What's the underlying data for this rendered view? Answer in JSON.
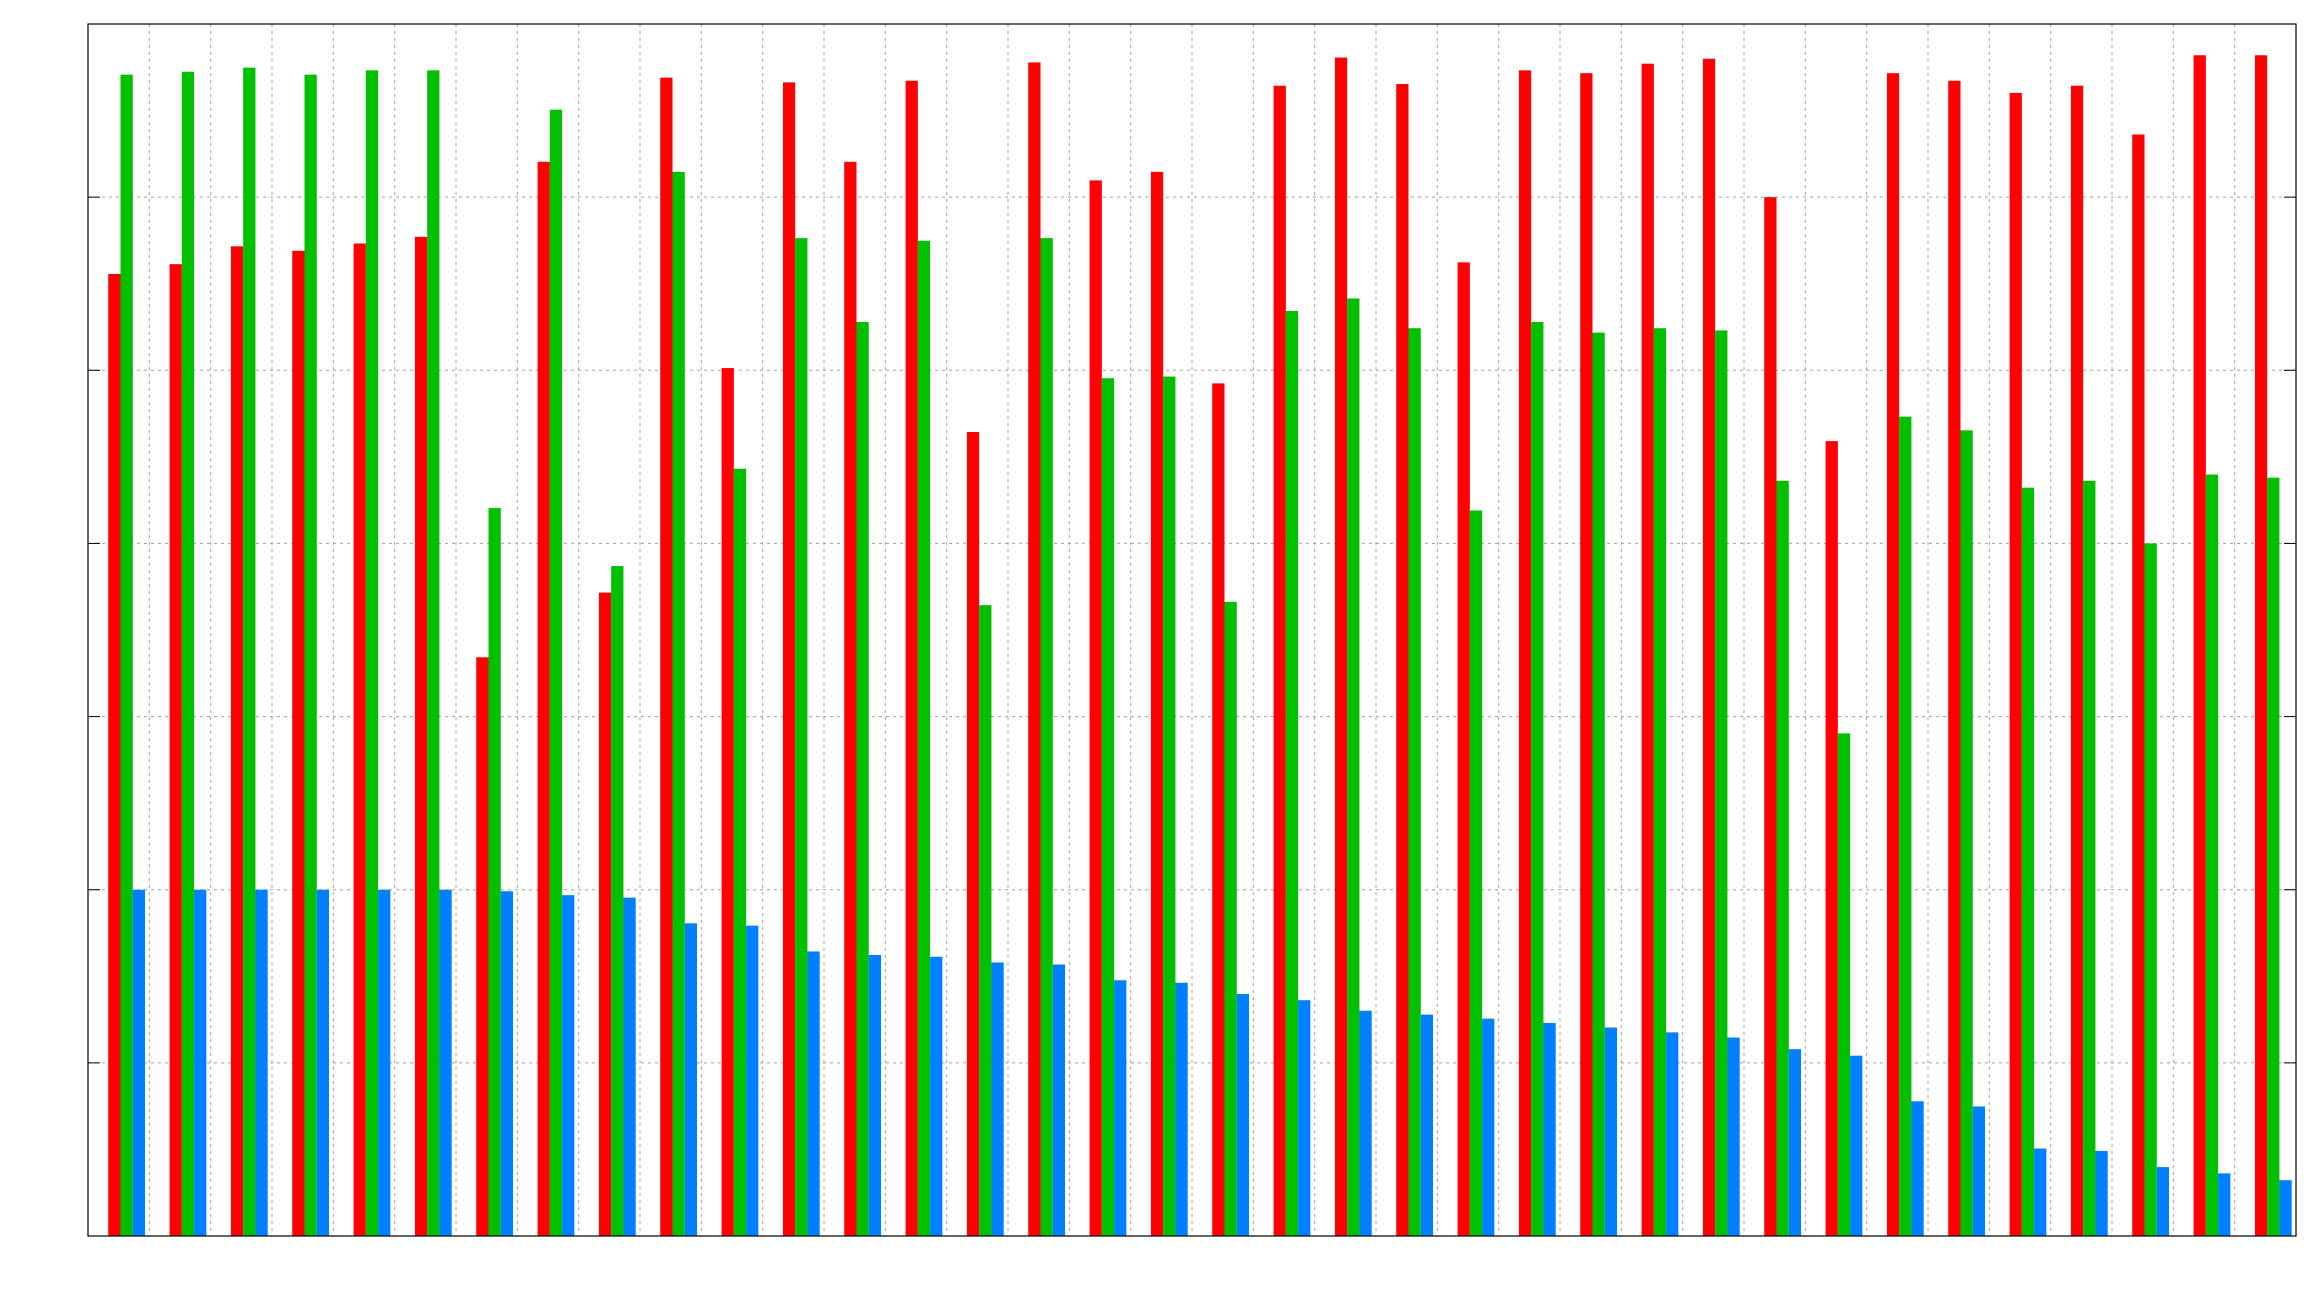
{
  "chart": {
    "title": "",
    "ylabel": ""
  },
  "chart_data": {
    "type": "bar",
    "title": "",
    "xlabel": "",
    "ylabel": "",
    "yscale": "log",
    "ylim": [
      0.01,
      100000
    ],
    "grid": true,
    "legend_position": "top-right",
    "yticks": [
      "",
      "",
      "",
      "",
      "",
      "",
      "",
      ""
    ],
    "categories": [
      "",
      "",
      "",
      "",
      "",
      "",
      "",
      "",
      "",
      "",
      "",
      "",
      "",
      "",
      "",
      "",
      "",
      "",
      "",
      "",
      "",
      "",
      "",
      "",
      "",
      "",
      "",
      "",
      "",
      "",
      "",
      "",
      "",
      "",
      "",
      ""
    ],
    "series": [
      {
        "name": "",
        "color": "#ff0000",
        "values": [
          3600,
          4100,
          5200,
          4900,
          5400,
          5900,
          22,
          16000,
          52,
          49000,
          1030,
          46000,
          16000,
          47000,
          440,
          60000,
          12500,
          14000,
          840,
          44000,
          64000,
          45000,
          4200,
          54000,
          52000,
          59000,
          63000,
          10000,
          390,
          52000,
          47000,
          40000,
          44000,
          23000,
          66000,
          66000
        ]
      },
      {
        "name": "",
        "color": "#00c000",
        "values": [
          51000,
          53000,
          56000,
          51000,
          54000,
          54000,
          160,
          32000,
          74,
          14000,
          270,
          5800,
          1900,
          5600,
          44,
          5800,
          900,
          920,
          46,
          2200,
          2600,
          1750,
          155,
          1900,
          1650,
          1750,
          1700,
          230,
          8,
          540,
          450,
          210,
          230,
          100,
          250,
          240
        ]
      },
      {
        "name": "",
        "color": "#0080ff",
        "values": [
          1.0,
          1.0,
          1.0,
          1.0,
          1.0,
          1.0,
          0.98,
          0.93,
          0.9,
          0.64,
          0.62,
          0.44,
          0.42,
          0.41,
          0.38,
          0.37,
          0.3,
          0.29,
          0.25,
          0.23,
          0.2,
          0.19,
          0.18,
          0.17,
          0.16,
          0.15,
          0.14,
          0.12,
          0.11,
          0.06,
          0.056,
          0.032,
          0.031,
          0.025,
          0.023,
          0.021
        ]
      }
    ]
  },
  "colors": {
    "background": "#ffffff",
    "frame": "#000000",
    "grid": "#a0a0a0"
  }
}
